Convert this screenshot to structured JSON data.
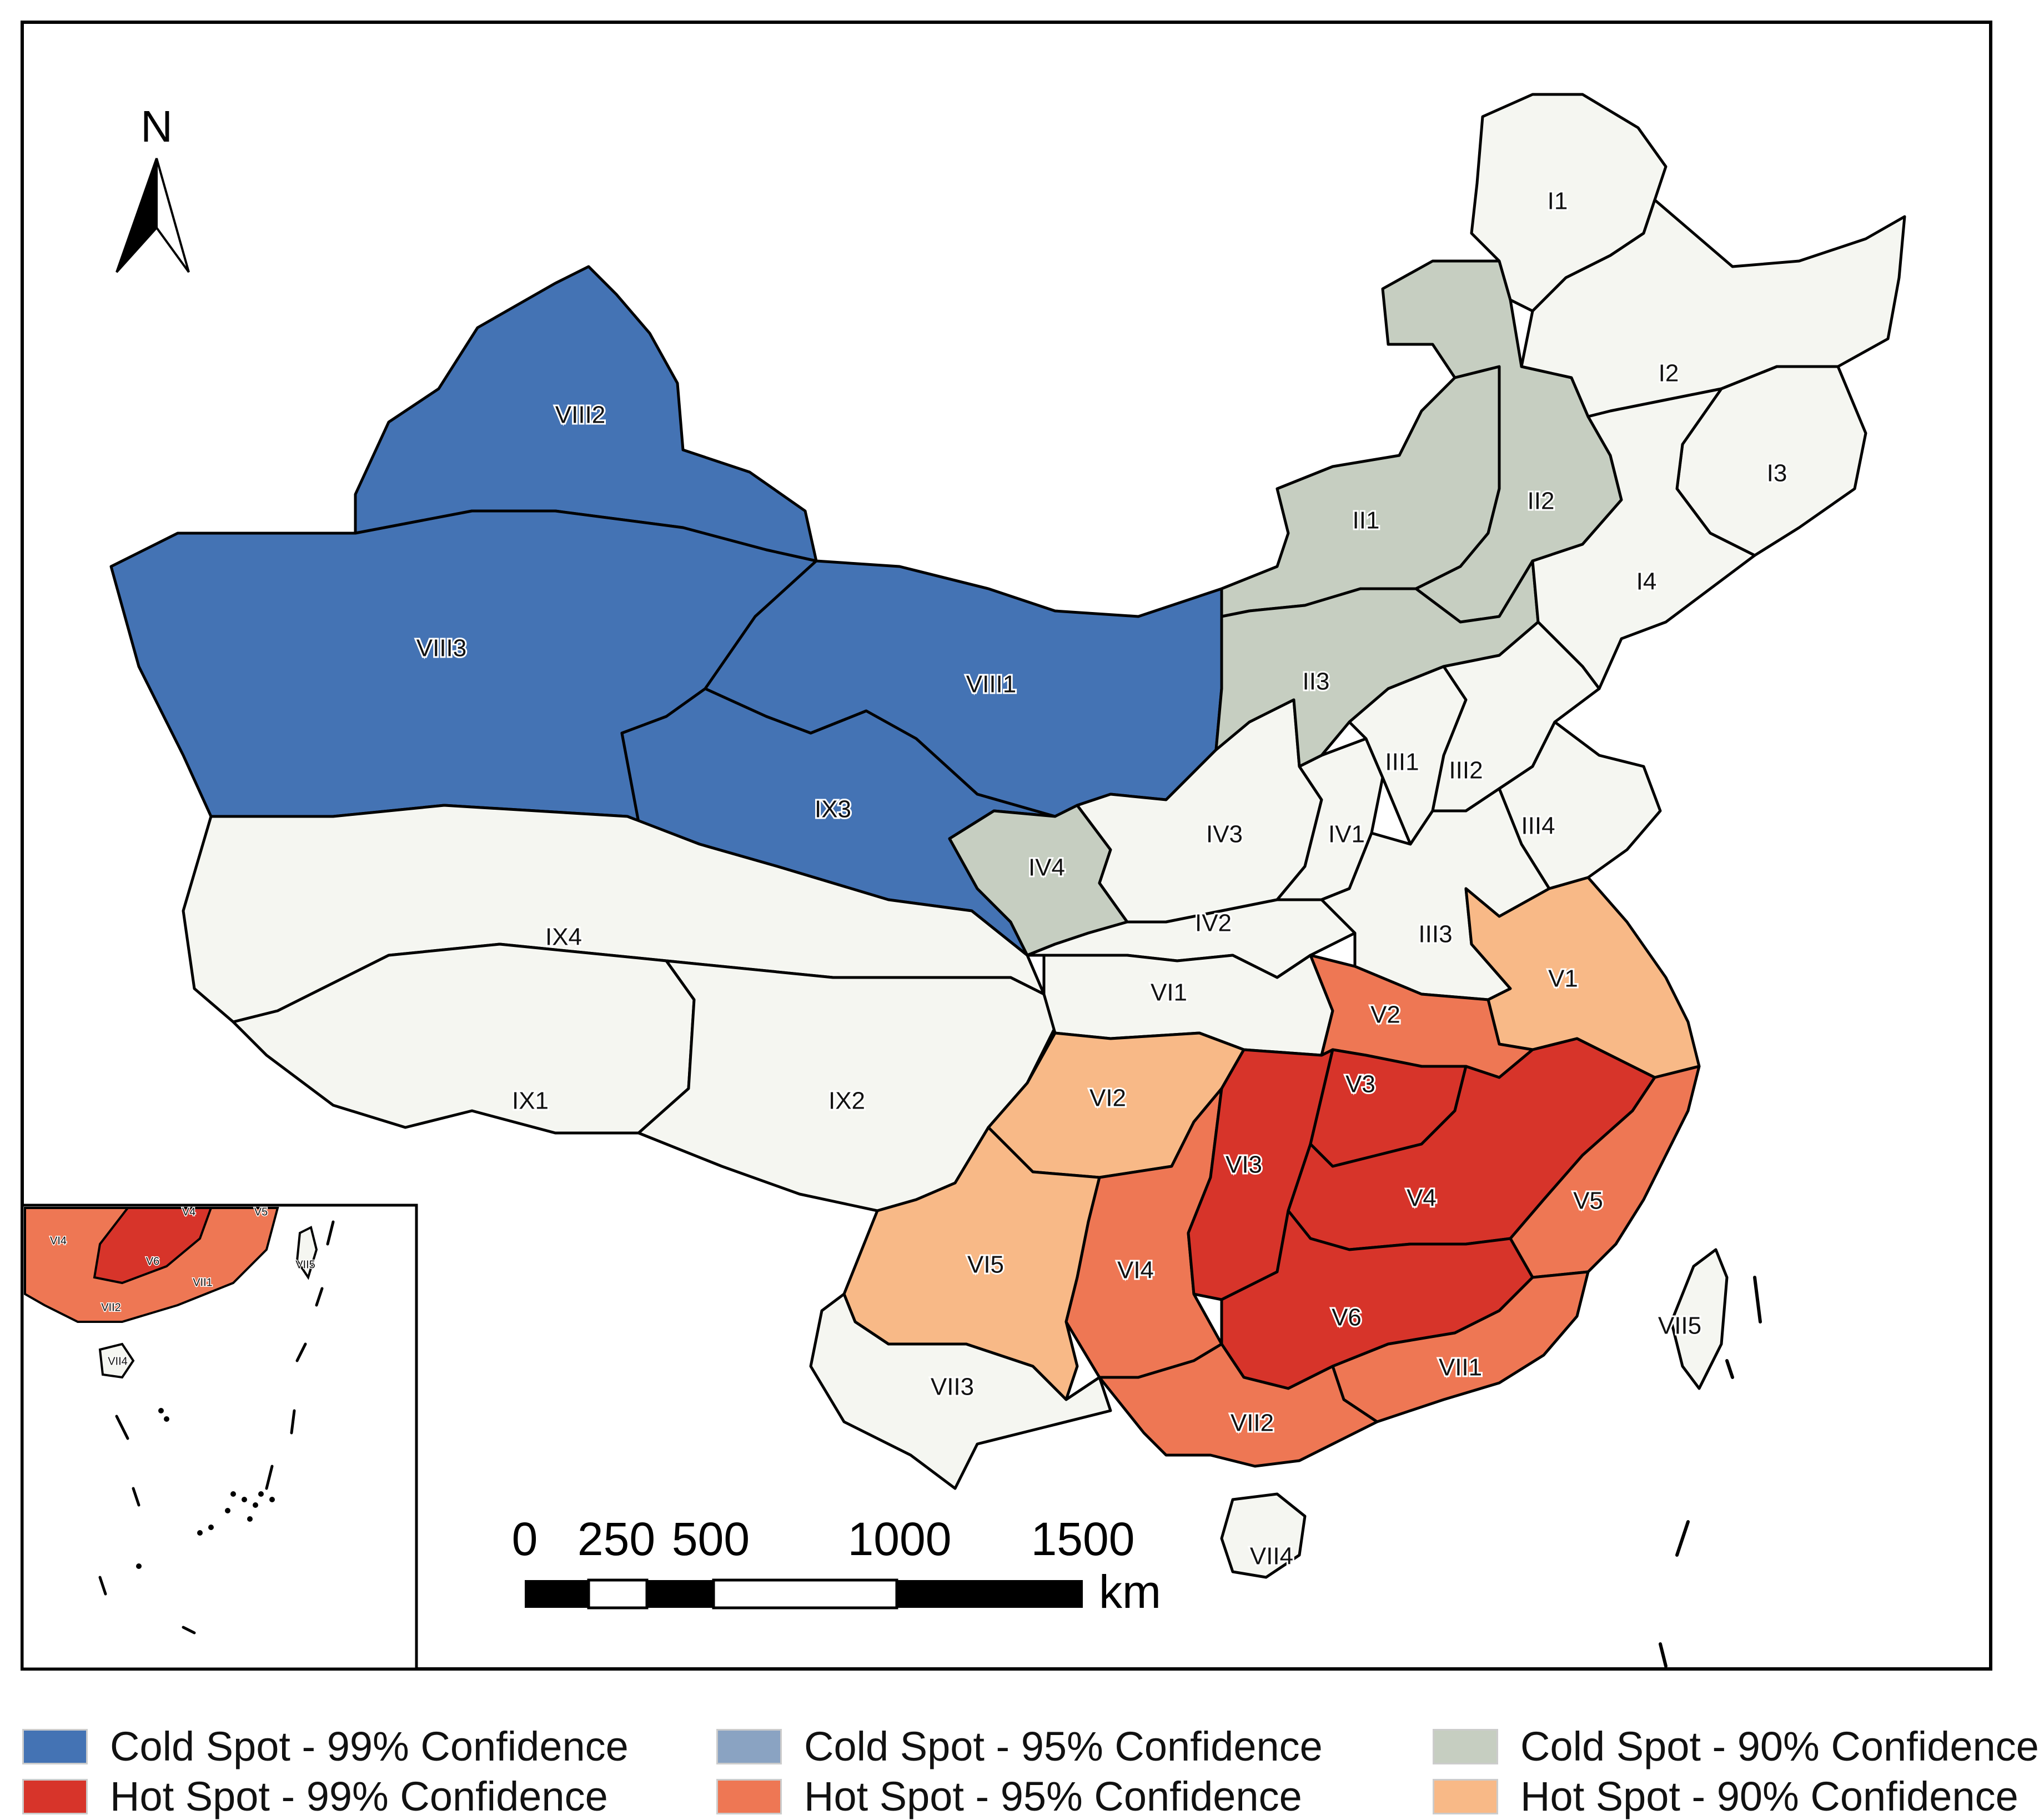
{
  "map": {
    "north_label": "N",
    "scale_bar": {
      "labels": [
        "0",
        "250",
        "500",
        "1000",
        "1500"
      ],
      "unit": "km"
    },
    "colors": {
      "cold99": "#4473b4",
      "cold95": "#8aa3c2",
      "cold90": "#c6cec1",
      "none": "#f5f6f1",
      "hot99": "#d7342a",
      "hot95": "#ee7754",
      "hot90": "#f8b987"
    },
    "regions": [
      {
        "label": "I1",
        "class": "none"
      },
      {
        "label": "I2",
        "class": "none"
      },
      {
        "label": "I3",
        "class": "none"
      },
      {
        "label": "I4",
        "class": "none"
      },
      {
        "label": "II1",
        "class": "cold90"
      },
      {
        "label": "II2",
        "class": "cold90"
      },
      {
        "label": "II3",
        "class": "cold90"
      },
      {
        "label": "III1",
        "class": "none"
      },
      {
        "label": "III2",
        "class": "none"
      },
      {
        "label": "III3",
        "class": "none"
      },
      {
        "label": "III4",
        "class": "none"
      },
      {
        "label": "IV1",
        "class": "none"
      },
      {
        "label": "IV2",
        "class": "none"
      },
      {
        "label": "IV3",
        "class": "none"
      },
      {
        "label": "IV4",
        "class": "cold90"
      },
      {
        "label": "V1",
        "class": "hot90"
      },
      {
        "label": "V2",
        "class": "hot95"
      },
      {
        "label": "V3",
        "class": "hot99"
      },
      {
        "label": "V4",
        "class": "hot99"
      },
      {
        "label": "V5",
        "class": "hot95"
      },
      {
        "label": "V6",
        "class": "hot99"
      },
      {
        "label": "VI1",
        "class": "none"
      },
      {
        "label": "VI2",
        "class": "hot90"
      },
      {
        "label": "VI3",
        "class": "hot99"
      },
      {
        "label": "VI4",
        "class": "hot95"
      },
      {
        "label": "VI5",
        "class": "hot90"
      },
      {
        "label": "VII1",
        "class": "hot95"
      },
      {
        "label": "VII2",
        "class": "hot95"
      },
      {
        "label": "VII3",
        "class": "none"
      },
      {
        "label": "VII4",
        "class": "none"
      },
      {
        "label": "VII5",
        "class": "none"
      },
      {
        "label": "VIII1",
        "class": "cold99"
      },
      {
        "label": "VIII2",
        "class": "cold99"
      },
      {
        "label": "VIII3",
        "class": "cold99"
      },
      {
        "label": "IX1",
        "class": "none"
      },
      {
        "label": "IX2",
        "class": "none"
      },
      {
        "label": "IX3",
        "class": "cold99"
      },
      {
        "label": "IX4",
        "class": "none"
      }
    ],
    "inset_labels": [
      "VI4",
      "V4",
      "V5",
      "V6",
      "VII1",
      "VII2",
      "VII4",
      "VII5"
    ]
  },
  "legend": {
    "items": [
      {
        "label": "Cold Spot - 99% Confidence",
        "color": "#4473b4"
      },
      {
        "label": "Cold Spot - 95% Confidence",
        "color": "#8aa3c2"
      },
      {
        "label": "Cold Spot - 90% Confidence",
        "color": "#c6cec1"
      },
      {
        "label": "Hot Spot - 99% Confidence",
        "color": "#d7342a"
      },
      {
        "label": "Hot Spot - 95% Confidence",
        "color": "#ee7754"
      },
      {
        "label": "Hot Spot - 90% Confidence",
        "color": "#f8b987"
      }
    ]
  }
}
